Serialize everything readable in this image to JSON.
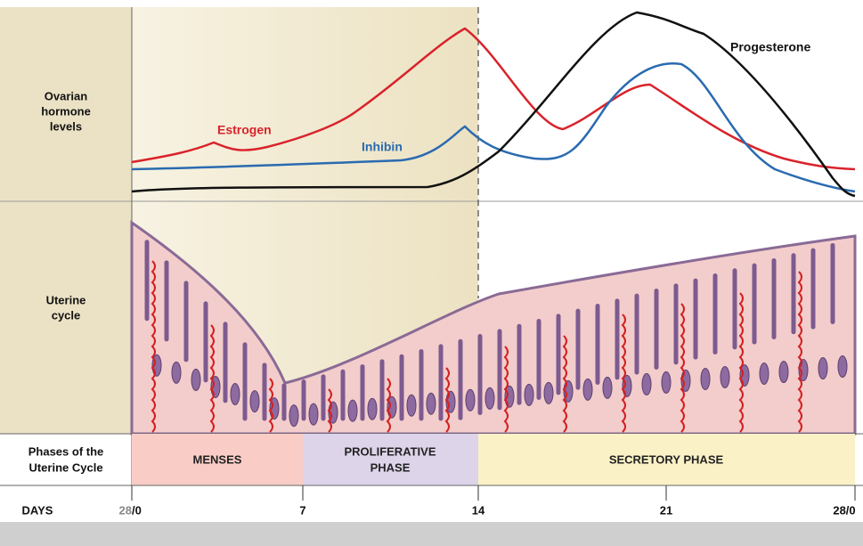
{
  "rows": {
    "hormones": {
      "label_lines": [
        "Ovarian",
        "hormone",
        "levels"
      ]
    },
    "uterine": {
      "label_lines": [
        "Uterine",
        "cycle"
      ]
    },
    "phases": {
      "label_lines": [
        "Phases of the",
        "Uterine Cycle"
      ],
      "items": [
        "MENSES",
        [
          "PROLIFERATIVE",
          "PHASE"
        ],
        "SECRETORY PHASE"
      ]
    }
  },
  "curves": {
    "estrogen": "Estrogen",
    "inhibin": "Inhibin",
    "progesterone": "Progesterone"
  },
  "days": {
    "label": "DAYS",
    "start_prev": "28",
    "start": "/0",
    "ticks": [
      "7",
      "14",
      "21"
    ],
    "end": "28/0"
  }
}
